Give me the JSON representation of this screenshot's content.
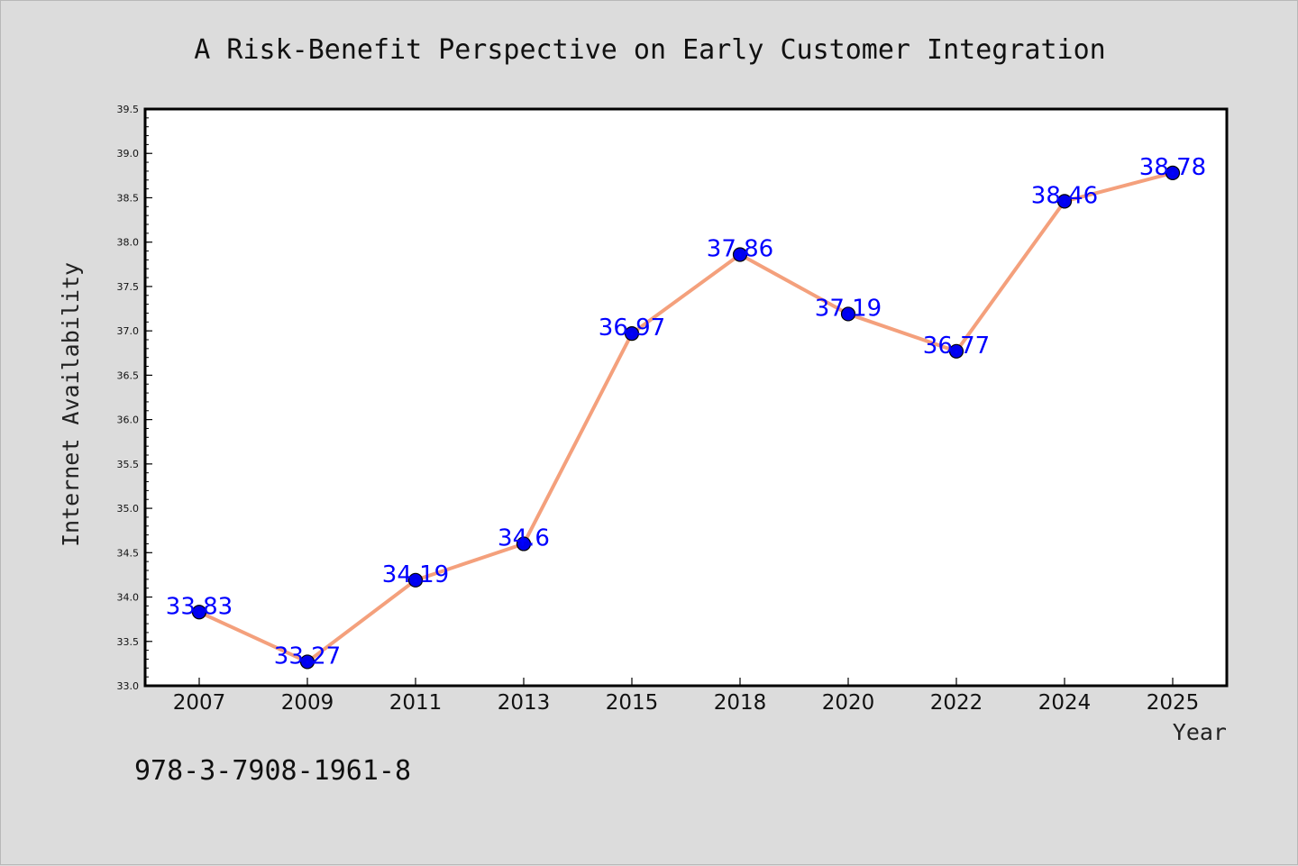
{
  "chart_data": {
    "type": "line",
    "title": "A Risk-Benefit Perspective on Early Customer Integration",
    "xlabel": "Year",
    "ylabel": "Internet Availability",
    "categories": [
      "2007",
      "2009",
      "2011",
      "2013",
      "2015",
      "2018",
      "2020",
      "2022",
      "2024",
      "2025"
    ],
    "values": [
      33.83,
      33.27,
      34.19,
      34.6,
      36.97,
      37.86,
      37.19,
      36.77,
      38.46,
      38.78
    ],
    "data_labels": [
      "33.83",
      "33.27",
      "34.19",
      "34.6",
      "36.97",
      "37.86",
      "37.19",
      "36.77",
      "38.46",
      "38.78"
    ],
    "ylim": [
      33.0,
      39.5
    ],
    "yticks": [
      "33.0",
      "33.5",
      "34.0",
      "34.5",
      "35.0",
      "35.5",
      "36.0",
      "36.5",
      "37.0",
      "37.5",
      "38.0",
      "38.5",
      "39.0",
      "39.5"
    ],
    "grid": false,
    "legend": "none",
    "line_color": "#f4a07c",
    "marker_color": "#0000ee",
    "label_color": "#0000ff"
  },
  "footer": {
    "isbn": "978-3-7908-1961-8"
  }
}
